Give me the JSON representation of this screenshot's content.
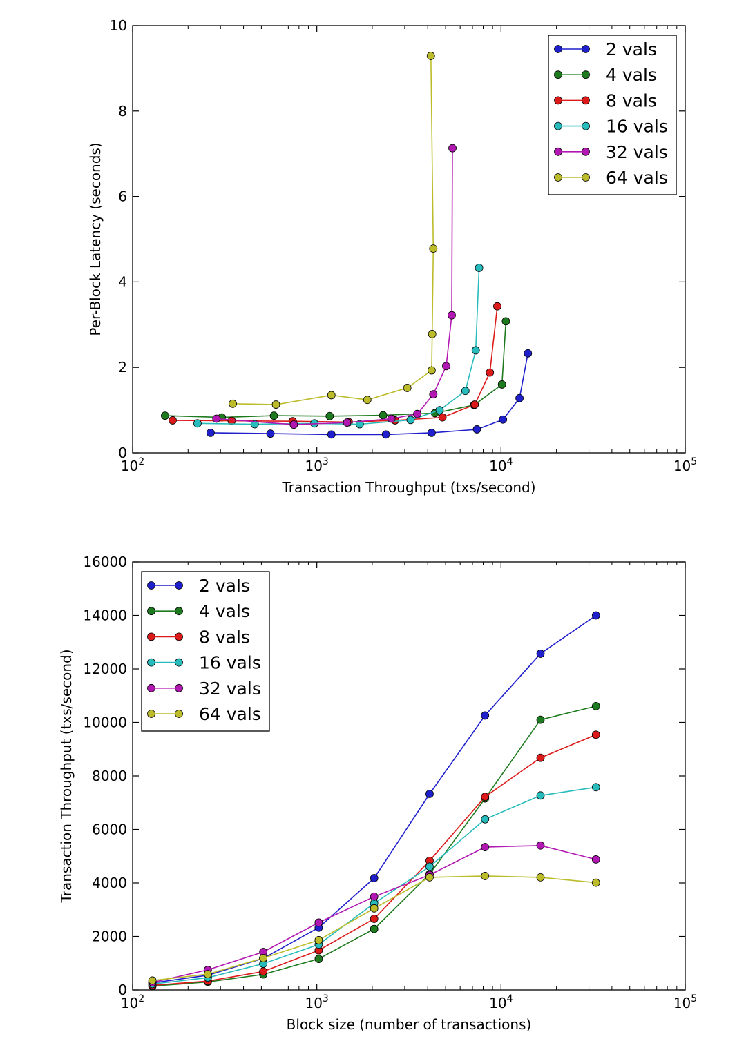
{
  "chart_data": [
    {
      "type": "line",
      "xlabel": "Transaction Throughput (txs/second)",
      "ylabel": "Per-Block Latency (seconds)",
      "xscale": "log",
      "xlim": [
        100,
        100000
      ],
      "ylim": [
        0,
        10
      ],
      "x_ticks": [
        {
          "value": 100,
          "base": "10",
          "exp": "2"
        },
        {
          "value": 1000,
          "base": "10",
          "exp": "3"
        },
        {
          "value": 10000,
          "base": "10",
          "exp": "4"
        },
        {
          "value": 100000,
          "base": "10",
          "exp": "5"
        }
      ],
      "y_ticks": [
        {
          "value": 0,
          "label": "0"
        },
        {
          "value": 2,
          "label": "2"
        },
        {
          "value": 4,
          "label": "4"
        },
        {
          "value": 6,
          "label": "6"
        },
        {
          "value": 8,
          "label": "8"
        },
        {
          "value": 10,
          "label": "10"
        }
      ],
      "legend_position": "top-right",
      "series": [
        {
          "name": "2 vals",
          "color": "#1f1fcc",
          "x": [
            265,
            560,
            1200,
            2370,
            4200,
            7400,
            10250,
            12600,
            14000
          ],
          "y": [
            0.47,
            0.45,
            0.43,
            0.43,
            0.47,
            0.55,
            0.78,
            1.28,
            2.33
          ]
        },
        {
          "name": "4 vals",
          "color": "#1e7a1e",
          "x": [
            150,
            305,
            585,
            1175,
            2290,
            4380,
            7140,
            10120,
            10630
          ],
          "y": [
            0.87,
            0.83,
            0.87,
            0.86,
            0.88,
            0.93,
            1.12,
            1.6,
            3.08
          ]
        },
        {
          "name": "8 vals",
          "color": "#dd1a1a",
          "x": [
            165,
            345,
            740,
            1490,
            2660,
            4810,
            7200,
            8700,
            9550
          ],
          "y": [
            0.76,
            0.75,
            0.74,
            0.72,
            0.76,
            0.83,
            1.13,
            1.88,
            3.43
          ]
        },
        {
          "name": "16 vals",
          "color": "#27bbbb",
          "x": [
            225,
            460,
            970,
            1710,
            3230,
            4640,
            6410,
            7290,
            7600
          ],
          "y": [
            0.69,
            0.67,
            0.69,
            0.67,
            0.77,
            1.0,
            1.45,
            2.4,
            4.33
          ]
        },
        {
          "name": "32 vals",
          "color": "#b118b1",
          "x": [
            285,
            750,
            1460,
            2540,
            3510,
            4290,
            5040,
            5400,
            5450
          ],
          "y": [
            0.8,
            0.66,
            0.71,
            0.8,
            0.91,
            1.37,
            2.03,
            3.22,
            7.13
          ]
        },
        {
          "name": "64 vals",
          "color": "#bcbc2b",
          "x": [
            350,
            600,
            1200,
            1880,
            3100,
            4200,
            4230,
            4290,
            4160
          ],
          "y": [
            1.15,
            1.13,
            1.35,
            1.24,
            1.52,
            1.93,
            2.78,
            4.78,
            9.29
          ]
        }
      ]
    },
    {
      "type": "line",
      "xlabel": "Block size (number of transactions)",
      "ylabel": "Transaction Throughput (txs/second)",
      "xscale": "log",
      "xlim": [
        100,
        100000
      ],
      "ylim": [
        0,
        16000
      ],
      "x_ticks": [
        {
          "value": 100,
          "base": "10",
          "exp": "2"
        },
        {
          "value": 1000,
          "base": "10",
          "exp": "3"
        },
        {
          "value": 10000,
          "base": "10",
          "exp": "4"
        },
        {
          "value": 100000,
          "base": "10",
          "exp": "5"
        }
      ],
      "y_ticks": [
        {
          "value": 0,
          "label": "0"
        },
        {
          "value": 2000,
          "label": "2000"
        },
        {
          "value": 4000,
          "label": "4000"
        },
        {
          "value": 6000,
          "label": "6000"
        },
        {
          "value": 8000,
          "label": "8000"
        },
        {
          "value": 10000,
          "label": "10000"
        },
        {
          "value": 12000,
          "label": "12000"
        },
        {
          "value": 14000,
          "label": "14000"
        },
        {
          "value": 16000,
          "label": "16000"
        }
      ],
      "legend_position": "top-left",
      "x": [
        128,
        256,
        512,
        1024,
        2048,
        4096,
        8192,
        16384,
        32768
      ],
      "series": [
        {
          "name": "2 vals",
          "color": "#1f1fcc",
          "values": [
            260,
            550,
            1180,
            2330,
            4180,
            7330,
            10260,
            12570,
            14000
          ]
        },
        {
          "name": "4 vals",
          "color": "#1e7a1e",
          "values": [
            140,
            300,
            580,
            1160,
            2280,
            4330,
            7160,
            10100,
            10610
          ]
        },
        {
          "name": "8 vals",
          "color": "#dd1a1a",
          "values": [
            170,
            330,
            690,
            1480,
            2660,
            4830,
            7220,
            8680,
            9540
          ]
        },
        {
          "name": "16 vals",
          "color": "#27bbbb",
          "values": [
            220,
            460,
            980,
            1700,
            3240,
            4610,
            6380,
            7270,
            7580
          ]
        },
        {
          "name": "32 vals",
          "color": "#b118b1",
          "values": [
            280,
            750,
            1420,
            2520,
            3490,
            4300,
            5340,
            5400,
            4880
          ]
        },
        {
          "name": "64 vals",
          "color": "#bcbc2b",
          "values": [
            350,
            590,
            1190,
            1860,
            3050,
            4210,
            4260,
            4210,
            4010
          ]
        }
      ]
    }
  ]
}
